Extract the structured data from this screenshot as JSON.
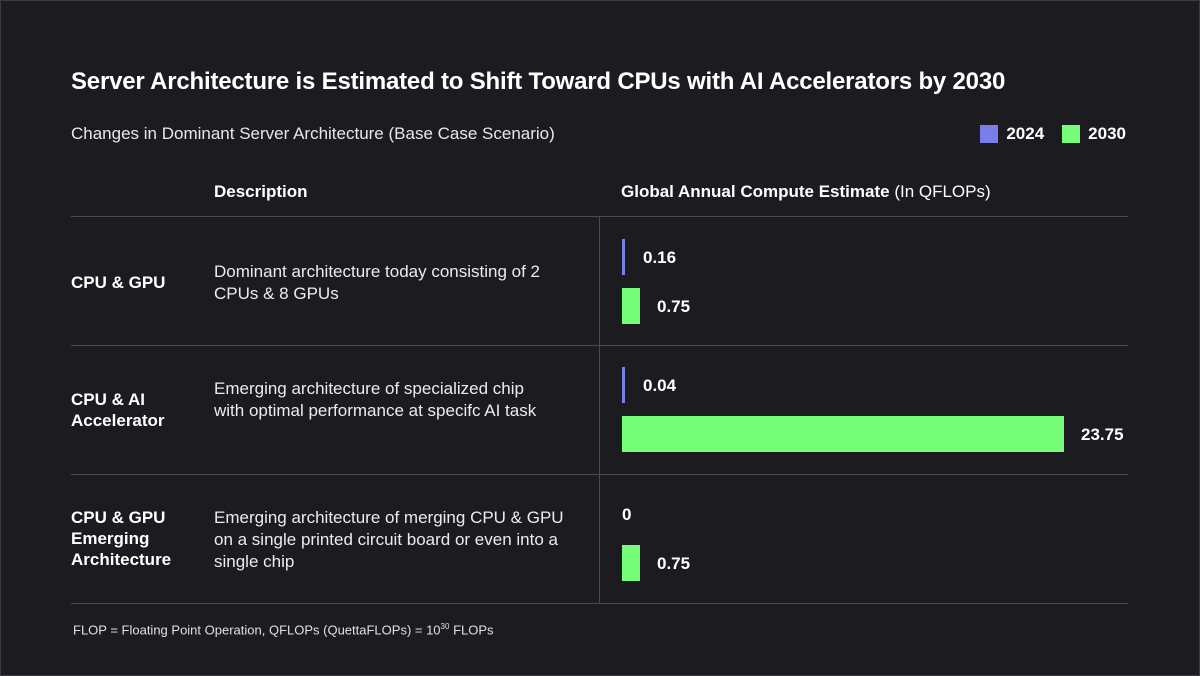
{
  "title": "Server Architecture is Estimated to Shift Toward CPUs with AI Accelerators by 2030",
  "subtitle": "Changes in Dominant Server Architecture (Base Case Scenario)",
  "legend": [
    {
      "label": "2024",
      "color": "#7b7ee8"
    },
    {
      "label": "2030",
      "color": "#76fd7a"
    }
  ],
  "columns": {
    "description": "Description",
    "compute_bold": "Global Annual Compute Estimate",
    "compute_unit": "(In QFLOPs)"
  },
  "chart_data": {
    "type": "bar",
    "orientation": "horizontal",
    "categories": [
      "CPU & GPU",
      "CPU & AI Accelerator",
      "CPU & GPU Emerging Architecture"
    ],
    "descriptions": [
      "Dominant architecture today consisting of 2 CPUs & 8 GPUs",
      "Emerging architecture of specialized chip with optimal performance at specifc AI task",
      "Emerging architecture of merging CPU & GPU on a single printed circuit board or even into a single chip"
    ],
    "series": [
      {
        "name": "2024",
        "values": [
          0.16,
          0.04,
          0
        ],
        "labels": [
          "0.16",
          "0.04",
          "0"
        ]
      },
      {
        "name": "2030",
        "values": [
          0.75,
          23.75,
          0.75
        ],
        "labels": [
          "0.75",
          "23.75",
          "0.75"
        ]
      }
    ],
    "xlim": [
      0,
      23.75
    ],
    "grid": false,
    "legend_position": "top-right"
  },
  "footnote": {
    "text": "FLOP = Floating Point Operation, QFLOPs (QuettaFLOPs) = 10",
    "sup": "30",
    "tail": " FLOPs"
  }
}
